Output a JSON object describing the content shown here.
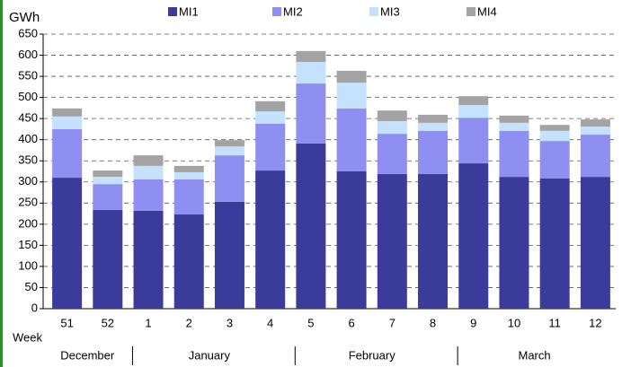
{
  "chart_data": {
    "type": "bar",
    "stacked": true,
    "y_label": "GWh",
    "x_label": "Week",
    "categories": [
      "51",
      "52",
      "1",
      "2",
      "3",
      "4",
      "5",
      "6",
      "7",
      "8",
      "9",
      "10",
      "11",
      "12"
    ],
    "groups": [
      {
        "label": "December",
        "count": 2
      },
      {
        "label": "January",
        "count": 4
      },
      {
        "label": "February",
        "count": 4
      },
      {
        "label": "March",
        "count": 4
      }
    ],
    "series": [
      {
        "name": "MI1",
        "color": "#3b3b9c",
        "values": [
          310,
          234,
          232,
          223,
          253,
          327,
          391,
          325,
          319,
          319,
          344,
          312,
          308,
          312
        ]
      },
      {
        "name": "MI2",
        "color": "#8f8ff2",
        "values": [
          115,
          61,
          74,
          83,
          110,
          111,
          142,
          149,
          95,
          102,
          108,
          109,
          89,
          100
        ]
      },
      {
        "name": "MI3",
        "color": "#c4e2ff",
        "values": [
          30,
          17,
          32,
          17,
          21,
          29,
          51,
          61,
          30,
          19,
          30,
          19,
          24,
          19
        ]
      },
      {
        "name": "MI4",
        "color": "#a3a3a3",
        "values": [
          19,
          15,
          25,
          15,
          15,
          24,
          26,
          28,
          25,
          19,
          21,
          17,
          14,
          17
        ]
      }
    ],
    "ylim": [
      0,
      650
    ],
    "yticks": [
      0,
      50,
      100,
      150,
      200,
      250,
      300,
      350,
      400,
      450,
      500,
      550,
      600,
      650
    ],
    "grid": true
  }
}
